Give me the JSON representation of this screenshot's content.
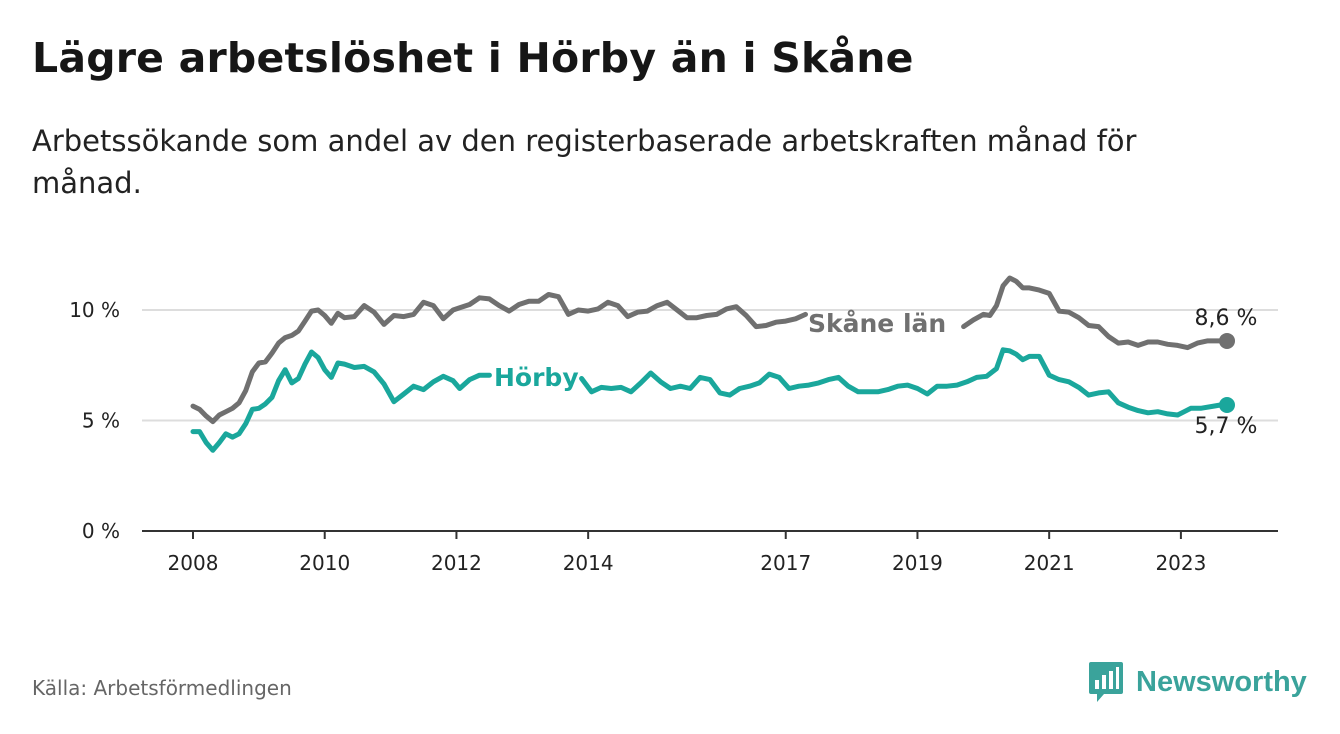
{
  "header": {
    "title": "Lägre arbetslöshet i Hörby än i Skåne",
    "subtitle": "Arbetssökande som andel av den registerbaserade arbetskraften månad för månad."
  },
  "footer": {
    "source": "Källa: Arbetsförmedlingen",
    "brand": "Newsworthy",
    "brand_icon": "newsworthy-logo-icon"
  },
  "colors": {
    "skane": "#707070",
    "horby": "#1aa79c",
    "grid": "#dddddd",
    "axis": "#333333"
  },
  "chart_data": {
    "type": "line",
    "title": "Lägre arbetslöshet i Hörby än i Skåne",
    "xlabel": "",
    "ylabel": "",
    "xlim": [
      2007.85,
      2024.6
    ],
    "ylim": [
      0,
      10
    ],
    "x_ticks": [
      2008,
      2010,
      2012,
      2014,
      2017,
      2019,
      2021,
      2023
    ],
    "x_tick_labels": [
      "2008",
      "2010",
      "2012",
      "2014",
      "2017",
      "2019",
      "2021",
      "2023"
    ],
    "y_ticks": [
      0,
      5,
      10
    ],
    "y_tick_labels": [
      "0 %",
      "5 %",
      "10 %"
    ],
    "grid": true,
    "series": [
      {
        "name": "Skåne län",
        "end_label": "8,6 %",
        "x": [
          2008.0,
          2008.1,
          2008.2,
          2008.3,
          2008.4,
          2008.5,
          2008.6,
          2008.7,
          2008.8,
          2008.9,
          2009.0,
          2009.1,
          2009.2,
          2009.3,
          2009.4,
          2009.5,
          2009.6,
          2009.7,
          2009.8,
          2009.9,
          2010.0,
          2010.1,
          2010.2,
          2010.3,
          2010.45,
          2010.6,
          2010.75,
          2010.9,
          2011.05,
          2011.2,
          2011.35,
          2011.5,
          2011.65,
          2011.8,
          2011.95,
          2012.05,
          2012.2,
          2012.35,
          2012.5,
          2012.65,
          2012.8,
          2012.95,
          2013.1,
          2013.25,
          2013.4,
          2013.55,
          2013.7,
          2013.85,
          2014.0,
          2014.15,
          2014.3,
          2014.45,
          2014.6,
          2014.75,
          2014.9,
          2015.05,
          2015.2,
          2015.35,
          2015.5,
          2015.65,
          2015.8,
          2015.95,
          2016.1,
          2016.25,
          2016.4,
          2016.55,
          2016.7,
          2016.85,
          2017.0,
          2017.15,
          2017.3,
          2019.7,
          2019.85,
          2020.0,
          2020.1,
          2020.2,
          2020.3,
          2020.4,
          2020.5,
          2020.6,
          2020.7,
          2020.85,
          2021.0,
          2021.15,
          2021.3,
          2021.45,
          2021.6,
          2021.75,
          2021.9,
          2022.05,
          2022.2,
          2022.35,
          2022.5,
          2022.65,
          2022.8,
          2022.95,
          2023.1,
          2023.25,
          2023.4,
          2023.55,
          2023.7
        ],
        "y": [
          5.65,
          5.5,
          5.2,
          4.95,
          5.25,
          5.4,
          5.55,
          5.8,
          6.35,
          7.2,
          7.6,
          7.65,
          8.05,
          8.5,
          8.75,
          8.85,
          9.05,
          9.5,
          9.95,
          10.0,
          9.75,
          9.4,
          9.85,
          9.65,
          9.7,
          10.2,
          9.9,
          9.35,
          9.75,
          9.7,
          9.8,
          10.35,
          10.2,
          9.6,
          10.0,
          10.1,
          10.25,
          10.55,
          10.5,
          10.2,
          9.95,
          10.25,
          10.4,
          10.4,
          10.7,
          10.6,
          9.8,
          10.0,
          9.95,
          10.05,
          10.35,
          10.2,
          9.7,
          9.9,
          9.95,
          10.2,
          10.35,
          10.0,
          9.65,
          9.65,
          9.75,
          9.8,
          10.05,
          10.15,
          9.75,
          9.25,
          9.3,
          9.45,
          9.5,
          9.6,
          9.8,
          9.25,
          9.55,
          9.8,
          9.75,
          10.2,
          11.1,
          11.45,
          11.3,
          11.0,
          11.0,
          10.9,
          10.75,
          9.95,
          9.9,
          9.65,
          9.3,
          9.25,
          8.8,
          8.5,
          8.55,
          8.4,
          8.55,
          8.55,
          8.45,
          8.4,
          8.3,
          8.5,
          8.6,
          8.6,
          8.6
        ]
      },
      {
        "name": "Hörby",
        "end_label": "5,7 %",
        "x": [
          2008.0,
          2008.1,
          2008.2,
          2008.3,
          2008.4,
          2008.5,
          2008.6,
          2008.7,
          2008.8,
          2008.9,
          2009.0,
          2009.1,
          2009.2,
          2009.3,
          2009.4,
          2009.5,
          2009.6,
          2009.7,
          2009.8,
          2009.9,
          2010.0,
          2010.1,
          2010.2,
          2010.3,
          2010.45,
          2010.6,
          2010.75,
          2010.9,
          2011.05,
          2011.2,
          2011.35,
          2011.5,
          2011.65,
          2011.8,
          2011.95,
          2012.05,
          2012.2,
          2012.35,
          2012.5,
          2013.9,
          2014.05,
          2014.2,
          2014.35,
          2014.5,
          2014.65,
          2014.8,
          2014.95,
          2015.1,
          2015.25,
          2015.4,
          2015.55,
          2015.7,
          2015.85,
          2016.0,
          2016.15,
          2016.3,
          2016.45,
          2016.6,
          2016.75,
          2016.9,
          2017.05,
          2017.2,
          2017.35,
          2017.5,
          2017.65,
          2017.8,
          2017.95,
          2018.1,
          2018.25,
          2018.4,
          2018.55,
          2018.7,
          2018.85,
          2019.0,
          2019.15,
          2019.3,
          2019.45,
          2019.6,
          2019.75,
          2019.9,
          2020.05,
          2020.2,
          2020.3,
          2020.4,
          2020.5,
          2020.6,
          2020.7,
          2020.85,
          2021.0,
          2021.15,
          2021.3,
          2021.45,
          2021.6,
          2021.75,
          2021.9,
          2022.05,
          2022.2,
          2022.35,
          2022.5,
          2022.65,
          2022.8,
          2022.95,
          2023.05,
          2023.15,
          2023.3,
          2023.5,
          2023.6,
          2023.7
        ],
        "y": [
          4.5,
          4.5,
          4.0,
          3.65,
          4.0,
          4.4,
          4.25,
          4.4,
          4.85,
          5.5,
          5.55,
          5.75,
          6.05,
          6.8,
          7.3,
          6.7,
          6.9,
          7.55,
          8.1,
          7.85,
          7.3,
          6.95,
          7.6,
          7.55,
          7.4,
          7.45,
          7.2,
          6.65,
          5.85,
          6.2,
          6.55,
          6.4,
          6.75,
          7.0,
          6.8,
          6.45,
          6.85,
          7.05,
          7.05,
          6.9,
          6.3,
          6.5,
          6.45,
          6.5,
          6.3,
          6.7,
          7.15,
          6.75,
          6.45,
          6.55,
          6.45,
          6.95,
          6.85,
          6.25,
          6.15,
          6.45,
          6.55,
          6.7,
          7.1,
          6.95,
          6.45,
          6.55,
          6.6,
          6.7,
          6.85,
          6.95,
          6.55,
          6.3,
          6.3,
          6.3,
          6.4,
          6.55,
          6.6,
          6.45,
          6.2,
          6.55,
          6.55,
          6.6,
          6.75,
          6.95,
          7.0,
          7.35,
          8.2,
          8.15,
          8.0,
          7.75,
          7.9,
          7.9,
          7.05,
          6.85,
          6.75,
          6.5,
          6.15,
          6.25,
          6.3,
          5.8,
          5.6,
          5.45,
          5.35,
          5.4,
          5.3,
          5.25,
          5.4,
          5.55,
          5.55,
          5.65,
          5.7,
          5.7
        ]
      }
    ]
  }
}
